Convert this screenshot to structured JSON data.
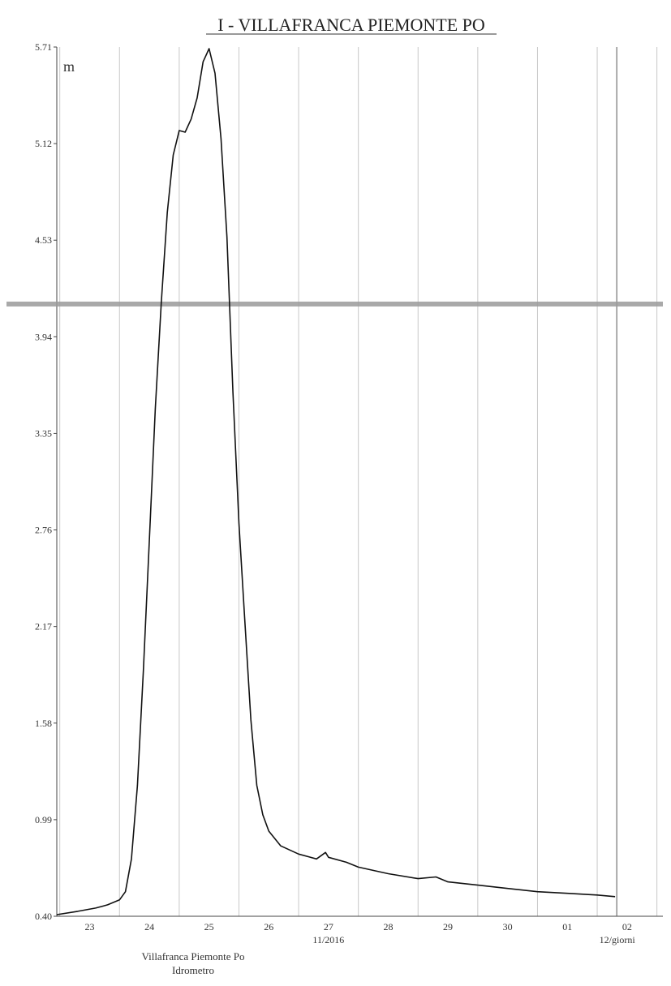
{
  "chart_data": {
    "type": "line",
    "title": "I - VILLAFRANCA PIEMONTE PO",
    "ylabel": "m",
    "xlabel": "giorni",
    "ylim": [
      0.4,
      5.71
    ],
    "yticks": [
      "0.40",
      "0.99",
      "1.58",
      "2.17",
      "2.76",
      "3.35",
      "3.94",
      "4.53",
      "5.12",
      "5.71"
    ],
    "xlim": [
      22.45,
      32.6
    ],
    "xticks": [
      {
        "day": 23,
        "label": "23"
      },
      {
        "day": 24,
        "label": "24"
      },
      {
        "day": 25,
        "label": "25"
      },
      {
        "day": 26,
        "label": "26"
      },
      {
        "day": 27,
        "label": "27"
      },
      {
        "day": 28,
        "label": "28"
      },
      {
        "day": 29,
        "label": "29"
      },
      {
        "day": 30,
        "label": "30"
      },
      {
        "day": 31,
        "label": "01"
      },
      {
        "day": 32,
        "label": "02"
      }
    ],
    "month_labels": [
      {
        "day": 27,
        "label": "11/2016"
      },
      {
        "day": 32,
        "label": "12/"
      }
    ],
    "threshold": 4.14,
    "caption_line1": "Villafranca Piemonte Po",
    "caption_line2": "Idrometro",
    "series": [
      {
        "points": [
          [
            22.45,
            0.41
          ],
          [
            22.8,
            0.43
          ],
          [
            23.1,
            0.45
          ],
          [
            23.3,
            0.47
          ],
          [
            23.5,
            0.5
          ],
          [
            23.6,
            0.55
          ],
          [
            23.7,
            0.75
          ],
          [
            23.8,
            1.2
          ],
          [
            23.9,
            1.9
          ],
          [
            24.0,
            2.7
          ],
          [
            24.1,
            3.5
          ],
          [
            24.2,
            4.15
          ],
          [
            24.3,
            4.7
          ],
          [
            24.4,
            5.05
          ],
          [
            24.5,
            5.2
          ],
          [
            24.6,
            5.19
          ],
          [
            24.7,
            5.27
          ],
          [
            24.8,
            5.4
          ],
          [
            24.9,
            5.62
          ],
          [
            25.0,
            5.7
          ],
          [
            25.1,
            5.55
          ],
          [
            25.2,
            5.15
          ],
          [
            25.3,
            4.55
          ],
          [
            25.4,
            3.6
          ],
          [
            25.5,
            2.8
          ],
          [
            25.6,
            2.2
          ],
          [
            25.7,
            1.6
          ],
          [
            25.8,
            1.2
          ],
          [
            25.9,
            1.02
          ],
          [
            26.0,
            0.92
          ],
          [
            26.2,
            0.83
          ],
          [
            26.5,
            0.78
          ],
          [
            26.8,
            0.75
          ],
          [
            26.95,
            0.79
          ],
          [
            27.0,
            0.76
          ],
          [
            27.3,
            0.73
          ],
          [
            27.5,
            0.7
          ],
          [
            28.0,
            0.66
          ],
          [
            28.5,
            0.63
          ],
          [
            28.8,
            0.64
          ],
          [
            29.0,
            0.61
          ],
          [
            29.5,
            0.59
          ],
          [
            30.0,
            0.57
          ],
          [
            30.5,
            0.55
          ],
          [
            31.0,
            0.54
          ],
          [
            31.5,
            0.53
          ],
          [
            31.8,
            0.52
          ]
        ]
      }
    ]
  }
}
